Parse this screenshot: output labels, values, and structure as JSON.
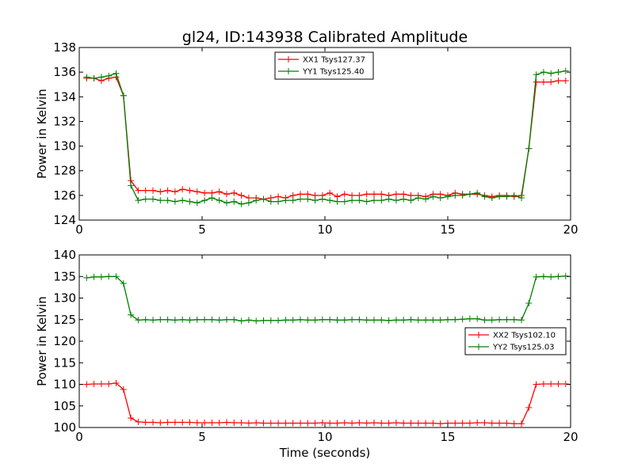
{
  "chart_data": [
    {
      "type": "line",
      "title": "gl24, ID:143938 Calibrated Amplitude",
      "xlabel": "",
      "ylabel": "Power in Kelvin",
      "xlim": [
        0,
        20
      ],
      "ylim": [
        124,
        138
      ],
      "xticks": [
        0,
        5,
        10,
        15,
        20
      ],
      "yticks": [
        124,
        126,
        128,
        130,
        132,
        134,
        136,
        138
      ],
      "legend_position": "upper-center",
      "series": [
        {
          "name": "XX1 Tsys127.37",
          "color": "#ff0000",
          "x": [
            0.3,
            0.6,
            0.9,
            1.2,
            1.5,
            1.8,
            2.1,
            2.4,
            2.7,
            3.0,
            3.3,
            3.6,
            3.9,
            4.2,
            4.5,
            4.8,
            5.1,
            5.4,
            5.7,
            6.0,
            6.3,
            6.6,
            6.9,
            7.2,
            7.5,
            7.8,
            8.1,
            8.4,
            8.7,
            9.0,
            9.3,
            9.6,
            9.9,
            10.2,
            10.5,
            10.8,
            11.1,
            11.4,
            11.7,
            12.0,
            12.3,
            12.6,
            12.9,
            13.2,
            13.5,
            13.8,
            14.1,
            14.4,
            14.7,
            15.0,
            15.3,
            15.6,
            15.9,
            16.2,
            16.5,
            16.8,
            17.1,
            17.4,
            17.7,
            18.0,
            18.3,
            18.6,
            18.9,
            19.2,
            19.5,
            19.8
          ],
          "values": [
            135.5,
            135.5,
            135.3,
            135.5,
            135.6,
            134.1,
            127.2,
            126.4,
            126.4,
            126.4,
            126.3,
            126.4,
            126.3,
            126.5,
            126.4,
            126.3,
            126.2,
            126.2,
            126.3,
            126.1,
            126.2,
            126.0,
            125.8,
            125.8,
            125.7,
            125.8,
            125.9,
            125.8,
            126.0,
            126.1,
            126.1,
            126.0,
            126.0,
            126.2,
            125.9,
            126.1,
            126.0,
            126.0,
            126.1,
            126.1,
            126.1,
            126.0,
            126.1,
            126.1,
            126.0,
            126.0,
            125.9,
            126.1,
            126.1,
            126.0,
            126.2,
            126.1,
            126.1,
            126.1,
            126.0,
            125.9,
            126.0,
            126.0,
            125.9,
            126.0,
            129.8,
            135.2,
            135.2,
            135.2,
            135.3,
            135.3
          ]
        },
        {
          "name": "YY1 Tsys125.40",
          "color": "#008000",
          "x": [
            0.3,
            0.6,
            0.9,
            1.2,
            1.5,
            1.8,
            2.1,
            2.4,
            2.7,
            3.0,
            3.3,
            3.6,
            3.9,
            4.2,
            4.5,
            4.8,
            5.1,
            5.4,
            5.7,
            6.0,
            6.3,
            6.6,
            6.9,
            7.2,
            7.5,
            7.8,
            8.1,
            8.4,
            8.7,
            9.0,
            9.3,
            9.6,
            9.9,
            10.2,
            10.5,
            10.8,
            11.1,
            11.4,
            11.7,
            12.0,
            12.3,
            12.6,
            12.9,
            13.2,
            13.5,
            13.8,
            14.1,
            14.4,
            14.7,
            15.0,
            15.3,
            15.6,
            15.9,
            16.2,
            16.5,
            16.8,
            17.1,
            17.4,
            17.7,
            18.0,
            18.3,
            18.6,
            18.9,
            19.2,
            19.5,
            19.8
          ],
          "values": [
            135.6,
            135.5,
            135.6,
            135.7,
            135.9,
            134.1,
            126.8,
            125.6,
            125.7,
            125.7,
            125.6,
            125.6,
            125.5,
            125.6,
            125.5,
            125.4,
            125.6,
            125.8,
            125.6,
            125.4,
            125.5,
            125.3,
            125.4,
            125.6,
            125.7,
            125.5,
            125.5,
            125.6,
            125.6,
            125.7,
            125.7,
            125.6,
            125.7,
            125.6,
            125.5,
            125.5,
            125.6,
            125.6,
            125.5,
            125.6,
            125.6,
            125.7,
            125.6,
            125.7,
            125.6,
            125.8,
            125.7,
            125.9,
            125.8,
            125.9,
            126.0,
            126.0,
            126.1,
            126.2,
            125.9,
            125.8,
            125.9,
            125.9,
            126.0,
            125.8,
            129.8,
            135.8,
            136.0,
            135.9,
            136.0,
            136.1
          ]
        }
      ]
    },
    {
      "type": "line",
      "title": "",
      "xlabel": "Time (seconds)",
      "ylabel": "Power in Kelvin",
      "xlim": [
        0,
        20
      ],
      "ylim": [
        100,
        140
      ],
      "xticks": [
        0,
        5,
        10,
        15,
        20
      ],
      "yticks": [
        100,
        105,
        110,
        115,
        120,
        125,
        130,
        135,
        140
      ],
      "legend_position": "center-right",
      "series": [
        {
          "name": "XX2 Tsys102.10",
          "color": "#ff0000",
          "x": [
            0.3,
            0.6,
            0.9,
            1.2,
            1.5,
            1.8,
            2.1,
            2.4,
            2.7,
            3.0,
            3.3,
            3.6,
            3.9,
            4.2,
            4.5,
            4.8,
            5.1,
            5.4,
            5.7,
            6.0,
            6.3,
            6.6,
            6.9,
            7.2,
            7.5,
            7.8,
            8.1,
            8.4,
            8.7,
            9.0,
            9.3,
            9.6,
            9.9,
            10.2,
            10.5,
            10.8,
            11.1,
            11.4,
            11.7,
            12.0,
            12.3,
            12.6,
            12.9,
            13.2,
            13.5,
            13.8,
            14.1,
            14.4,
            14.7,
            15.0,
            15.3,
            15.6,
            15.9,
            16.2,
            16.5,
            16.8,
            17.1,
            17.4,
            17.7,
            18.0,
            18.3,
            18.6,
            18.9,
            19.2,
            19.5,
            19.8
          ],
          "values": [
            110.0,
            110.1,
            110.1,
            110.1,
            110.3,
            108.8,
            102.2,
            101.3,
            101.2,
            101.2,
            101.1,
            101.2,
            101.2,
            101.2,
            101.2,
            101.1,
            101.1,
            101.1,
            101.1,
            101.2,
            101.1,
            101.1,
            101.0,
            101.1,
            101.0,
            101.0,
            101.0,
            101.0,
            101.0,
            101.0,
            101.0,
            101.0,
            101.1,
            101.0,
            101.0,
            101.1,
            101.0,
            101.1,
            101.0,
            101.1,
            101.0,
            101.0,
            101.1,
            101.0,
            101.0,
            101.0,
            101.0,
            101.0,
            100.9,
            101.0,
            101.0,
            101.0,
            101.0,
            101.1,
            101.1,
            101.0,
            101.0,
            101.0,
            100.9,
            100.9,
            104.6,
            110.0,
            110.1,
            110.1,
            110.1,
            110.1
          ]
        },
        {
          "name": "YY2 Tsys125.03",
          "color": "#008000",
          "x": [
            0.3,
            0.6,
            0.9,
            1.2,
            1.5,
            1.8,
            2.1,
            2.4,
            2.7,
            3.0,
            3.3,
            3.6,
            3.9,
            4.2,
            4.5,
            4.8,
            5.1,
            5.4,
            5.7,
            6.0,
            6.3,
            6.6,
            6.9,
            7.2,
            7.5,
            7.8,
            8.1,
            8.4,
            8.7,
            9.0,
            9.3,
            9.6,
            9.9,
            10.2,
            10.5,
            10.8,
            11.1,
            11.4,
            11.7,
            12.0,
            12.3,
            12.6,
            12.9,
            13.2,
            13.5,
            13.8,
            14.1,
            14.4,
            14.7,
            15.0,
            15.3,
            15.6,
            15.9,
            16.2,
            16.5,
            16.8,
            17.1,
            17.4,
            17.7,
            18.0,
            18.3,
            18.6,
            18.9,
            19.2,
            19.5,
            19.8
          ],
          "values": [
            134.7,
            134.9,
            134.9,
            135.0,
            135.0,
            133.4,
            126.1,
            124.9,
            125.0,
            124.9,
            125.0,
            125.0,
            124.9,
            125.0,
            124.9,
            125.0,
            125.0,
            125.0,
            124.9,
            125.0,
            125.0,
            124.7,
            124.9,
            124.7,
            124.8,
            124.8,
            124.8,
            124.9,
            124.9,
            125.0,
            124.9,
            124.9,
            125.0,
            125.0,
            124.9,
            124.9,
            125.0,
            125.0,
            124.9,
            124.9,
            124.9,
            124.8,
            124.9,
            124.9,
            125.0,
            124.9,
            124.9,
            124.9,
            124.9,
            125.0,
            125.0,
            125.1,
            125.2,
            125.2,
            124.9,
            124.9,
            125.0,
            125.0,
            125.0,
            124.9,
            128.8,
            134.9,
            135.0,
            134.9,
            135.0,
            135.1
          ]
        }
      ]
    }
  ]
}
